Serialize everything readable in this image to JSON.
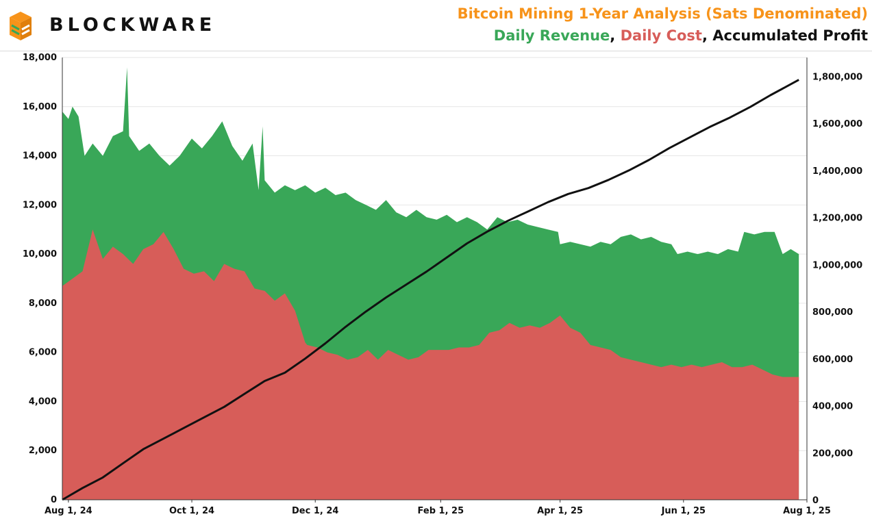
{
  "brand": {
    "name": "BLOCKWARE",
    "logo_icon": "stacked-blocks-icon",
    "logo_color": "#f7931a",
    "logo_stripe_color": "#39a758"
  },
  "header": {
    "title": "Bitcoin Mining 1-Year Analysis (Sats Denominated)",
    "title_color": "#f7931a",
    "legend": [
      {
        "label": "Daily Revenue",
        "color": "#39a758"
      },
      {
        "label": ", ",
        "color": "#111111"
      },
      {
        "label": "Daily Cost",
        "color": "#d75d59"
      },
      {
        "label": ", ",
        "color": "#111111"
      },
      {
        "label": "Accumulated Profit",
        "color": "#111111"
      }
    ]
  },
  "chart_data": {
    "type": "area",
    "x_start": "2024-07-29",
    "x_end": "2025-07-28",
    "x_tick_labels": [
      "Aug 1, 24",
      "Oct 1, 24",
      "Dec 1, 24",
      "Feb 1, 25",
      "Apr 1, 25",
      "Jun 1, 25",
      "Aug 1, 25"
    ],
    "x_tick_dates": [
      "2024-08-01",
      "2024-10-01",
      "2024-12-01",
      "2025-02-01",
      "2025-04-01",
      "2025-06-01",
      "2025-08-01"
    ],
    "xlim": [
      "2024-07-29",
      "2025-08-01"
    ],
    "y_left": {
      "ylim": [
        0,
        18000
      ],
      "ticks": [
        0,
        2000,
        4000,
        6000,
        8000,
        10000,
        12000,
        14000,
        16000,
        18000
      ],
      "tick_labels": [
        "0",
        "2,000",
        "4,000",
        "6,000",
        "8,000",
        "10,000",
        "12,000",
        "14,000",
        "16,000",
        "18,000"
      ]
    },
    "y_right": {
      "ylim": [
        0,
        1880000
      ],
      "ticks": [
        0,
        200000,
        400000,
        600000,
        800000,
        1000000,
        1200000,
        1400000,
        1600000,
        1800000
      ],
      "tick_labels": [
        "0",
        "200,000",
        "400,000",
        "600,000",
        "800,000",
        "1,000,000",
        "1,200,000",
        "1,400,000",
        "1,600,000",
        "1,800,000"
      ]
    },
    "grid": true,
    "series": [
      {
        "name": "Daily Revenue",
        "axis": "left",
        "color": "#39a758",
        "points": [
          [
            "2024-07-29",
            15800
          ],
          [
            "2024-08-01",
            15500
          ],
          [
            "2024-08-03",
            16000
          ],
          [
            "2024-08-06",
            15600
          ],
          [
            "2024-08-09",
            14000
          ],
          [
            "2024-08-13",
            14500
          ],
          [
            "2024-08-18",
            14000
          ],
          [
            "2024-08-23",
            14800
          ],
          [
            "2024-08-28",
            15000
          ],
          [
            "2024-08-30",
            17600
          ],
          [
            "2024-08-31",
            14800
          ],
          [
            "2024-09-05",
            14200
          ],
          [
            "2024-09-10",
            14500
          ],
          [
            "2024-09-15",
            14000
          ],
          [
            "2024-09-20",
            13600
          ],
          [
            "2024-09-25",
            14000
          ],
          [
            "2024-10-01",
            14700
          ],
          [
            "2024-10-06",
            14300
          ],
          [
            "2024-10-11",
            14800
          ],
          [
            "2024-10-16",
            15400
          ],
          [
            "2024-10-21",
            14400
          ],
          [
            "2024-10-26",
            13800
          ],
          [
            "2024-10-31",
            14500
          ],
          [
            "2024-11-03",
            12600
          ],
          [
            "2024-11-05",
            15200
          ],
          [
            "2024-11-06",
            13000
          ],
          [
            "2024-11-11",
            12500
          ],
          [
            "2024-11-16",
            12800
          ],
          [
            "2024-11-21",
            12600
          ],
          [
            "2024-11-26",
            12800
          ],
          [
            "2024-12-01",
            12500
          ],
          [
            "2024-12-06",
            12700
          ],
          [
            "2024-12-11",
            12400
          ],
          [
            "2024-12-16",
            12500
          ],
          [
            "2024-12-21",
            12200
          ],
          [
            "2024-12-26",
            12000
          ],
          [
            "2024-12-31",
            11800
          ],
          [
            "2025-01-05",
            12200
          ],
          [
            "2025-01-10",
            11700
          ],
          [
            "2025-01-15",
            11500
          ],
          [
            "2025-01-20",
            11800
          ],
          [
            "2025-01-25",
            11500
          ],
          [
            "2025-01-30",
            11400
          ],
          [
            "2025-02-04",
            11600
          ],
          [
            "2025-02-09",
            11300
          ],
          [
            "2025-02-14",
            11500
          ],
          [
            "2025-02-19",
            11300
          ],
          [
            "2025-02-24",
            11000
          ],
          [
            "2025-03-01",
            11500
          ],
          [
            "2025-03-06",
            11300
          ],
          [
            "2025-03-11",
            11400
          ],
          [
            "2025-03-16",
            11200
          ],
          [
            "2025-03-21",
            11100
          ],
          [
            "2025-03-26",
            11000
          ],
          [
            "2025-03-31",
            10900
          ],
          [
            "2025-04-01",
            10400
          ],
          [
            "2025-04-06",
            10500
          ],
          [
            "2025-04-11",
            10400
          ],
          [
            "2025-04-16",
            10300
          ],
          [
            "2025-04-21",
            10500
          ],
          [
            "2025-04-26",
            10400
          ],
          [
            "2025-05-01",
            10700
          ],
          [
            "2025-05-06",
            10800
          ],
          [
            "2025-05-11",
            10600
          ],
          [
            "2025-05-16",
            10700
          ],
          [
            "2025-05-21",
            10500
          ],
          [
            "2025-05-26",
            10400
          ],
          [
            "2025-05-29",
            10000
          ],
          [
            "2025-06-03",
            10100
          ],
          [
            "2025-06-08",
            10000
          ],
          [
            "2025-06-13",
            10100
          ],
          [
            "2025-06-18",
            10000
          ],
          [
            "2025-06-23",
            10200
          ],
          [
            "2025-06-28",
            10100
          ],
          [
            "2025-07-01",
            10900
          ],
          [
            "2025-07-06",
            10800
          ],
          [
            "2025-07-11",
            10900
          ],
          [
            "2025-07-16",
            10900
          ],
          [
            "2025-07-20",
            10000
          ],
          [
            "2025-07-24",
            10200
          ],
          [
            "2025-07-28",
            10000
          ]
        ]
      },
      {
        "name": "Daily Cost",
        "axis": "left",
        "color": "#d75d59",
        "points": [
          [
            "2024-07-29",
            8700
          ],
          [
            "2024-08-03",
            9000
          ],
          [
            "2024-08-08",
            9300
          ],
          [
            "2024-08-13",
            11000
          ],
          [
            "2024-08-18",
            9800
          ],
          [
            "2024-08-23",
            10300
          ],
          [
            "2024-08-28",
            10000
          ],
          [
            "2024-09-02",
            9600
          ],
          [
            "2024-09-07",
            10200
          ],
          [
            "2024-09-12",
            10400
          ],
          [
            "2024-09-17",
            10900
          ],
          [
            "2024-09-22",
            10200
          ],
          [
            "2024-09-27",
            9400
          ],
          [
            "2024-10-02",
            9200
          ],
          [
            "2024-10-07",
            9300
          ],
          [
            "2024-10-12",
            8900
          ],
          [
            "2024-10-17",
            9600
          ],
          [
            "2024-10-22",
            9400
          ],
          [
            "2024-10-27",
            9300
          ],
          [
            "2024-11-01",
            8600
          ],
          [
            "2024-11-06",
            8500
          ],
          [
            "2024-11-11",
            8100
          ],
          [
            "2024-11-16",
            8400
          ],
          [
            "2024-11-21",
            7700
          ],
          [
            "2024-11-26",
            6400
          ],
          [
            "2024-11-27",
            6300
          ],
          [
            "2024-12-02",
            6200
          ],
          [
            "2024-12-07",
            6000
          ],
          [
            "2024-12-12",
            5900
          ],
          [
            "2024-12-17",
            5700
          ],
          [
            "2024-12-22",
            5800
          ],
          [
            "2024-12-27",
            6100
          ],
          [
            "2025-01-01",
            5700
          ],
          [
            "2025-01-06",
            6100
          ],
          [
            "2025-01-11",
            5900
          ],
          [
            "2025-01-16",
            5700
          ],
          [
            "2025-01-21",
            5800
          ],
          [
            "2025-01-26",
            6100
          ],
          [
            "2025-01-31",
            6100
          ],
          [
            "2025-02-05",
            6100
          ],
          [
            "2025-02-10",
            6200
          ],
          [
            "2025-02-15",
            6200
          ],
          [
            "2025-02-20",
            6300
          ],
          [
            "2025-02-25",
            6800
          ],
          [
            "2025-03-02",
            6900
          ],
          [
            "2025-03-07",
            7200
          ],
          [
            "2025-03-12",
            7000
          ],
          [
            "2025-03-17",
            7100
          ],
          [
            "2025-03-22",
            7000
          ],
          [
            "2025-03-27",
            7200
          ],
          [
            "2025-04-01",
            7500
          ],
          [
            "2025-04-06",
            7000
          ],
          [
            "2025-04-11",
            6800
          ],
          [
            "2025-04-16",
            6300
          ],
          [
            "2025-04-21",
            6200
          ],
          [
            "2025-04-26",
            6100
          ],
          [
            "2025-05-01",
            5800
          ],
          [
            "2025-05-06",
            5700
          ],
          [
            "2025-05-11",
            5600
          ],
          [
            "2025-05-16",
            5500
          ],
          [
            "2025-05-21",
            5400
          ],
          [
            "2025-05-26",
            5500
          ],
          [
            "2025-05-31",
            5400
          ],
          [
            "2025-06-05",
            5500
          ],
          [
            "2025-06-10",
            5400
          ],
          [
            "2025-06-15",
            5500
          ],
          [
            "2025-06-20",
            5600
          ],
          [
            "2025-06-25",
            5400
          ],
          [
            "2025-06-30",
            5400
          ],
          [
            "2025-07-05",
            5500
          ],
          [
            "2025-07-10",
            5300
          ],
          [
            "2025-07-15",
            5100
          ],
          [
            "2025-07-20",
            5000
          ],
          [
            "2025-07-28",
            5000
          ]
        ]
      },
      {
        "name": "Accumulated Profit",
        "axis": "right",
        "color": "#111111",
        "points": [
          [
            "2024-07-29",
            0
          ],
          [
            "2024-08-08",
            50000
          ],
          [
            "2024-08-18",
            95000
          ],
          [
            "2024-08-28",
            155000
          ],
          [
            "2024-09-07",
            215000
          ],
          [
            "2024-09-17",
            260000
          ],
          [
            "2024-09-27",
            305000
          ],
          [
            "2024-10-07",
            350000
          ],
          [
            "2024-10-17",
            395000
          ],
          [
            "2024-10-27",
            450000
          ],
          [
            "2024-11-06",
            505000
          ],
          [
            "2024-11-16",
            540000
          ],
          [
            "2024-11-26",
            600000
          ],
          [
            "2024-12-06",
            665000
          ],
          [
            "2024-12-16",
            735000
          ],
          [
            "2024-12-26",
            800000
          ],
          [
            "2025-01-05",
            860000
          ],
          [
            "2025-01-15",
            915000
          ],
          [
            "2025-01-25",
            970000
          ],
          [
            "2025-02-04",
            1030000
          ],
          [
            "2025-02-14",
            1090000
          ],
          [
            "2025-02-24",
            1140000
          ],
          [
            "2025-03-06",
            1185000
          ],
          [
            "2025-03-16",
            1225000
          ],
          [
            "2025-03-26",
            1265000
          ],
          [
            "2025-04-05",
            1300000
          ],
          [
            "2025-04-15",
            1325000
          ],
          [
            "2025-04-25",
            1360000
          ],
          [
            "2025-05-05",
            1400000
          ],
          [
            "2025-05-15",
            1445000
          ],
          [
            "2025-05-25",
            1495000
          ],
          [
            "2025-06-04",
            1540000
          ],
          [
            "2025-06-14",
            1585000
          ],
          [
            "2025-06-24",
            1625000
          ],
          [
            "2025-07-04",
            1670000
          ],
          [
            "2025-07-14",
            1720000
          ],
          [
            "2025-07-28",
            1785000
          ]
        ]
      }
    ]
  }
}
